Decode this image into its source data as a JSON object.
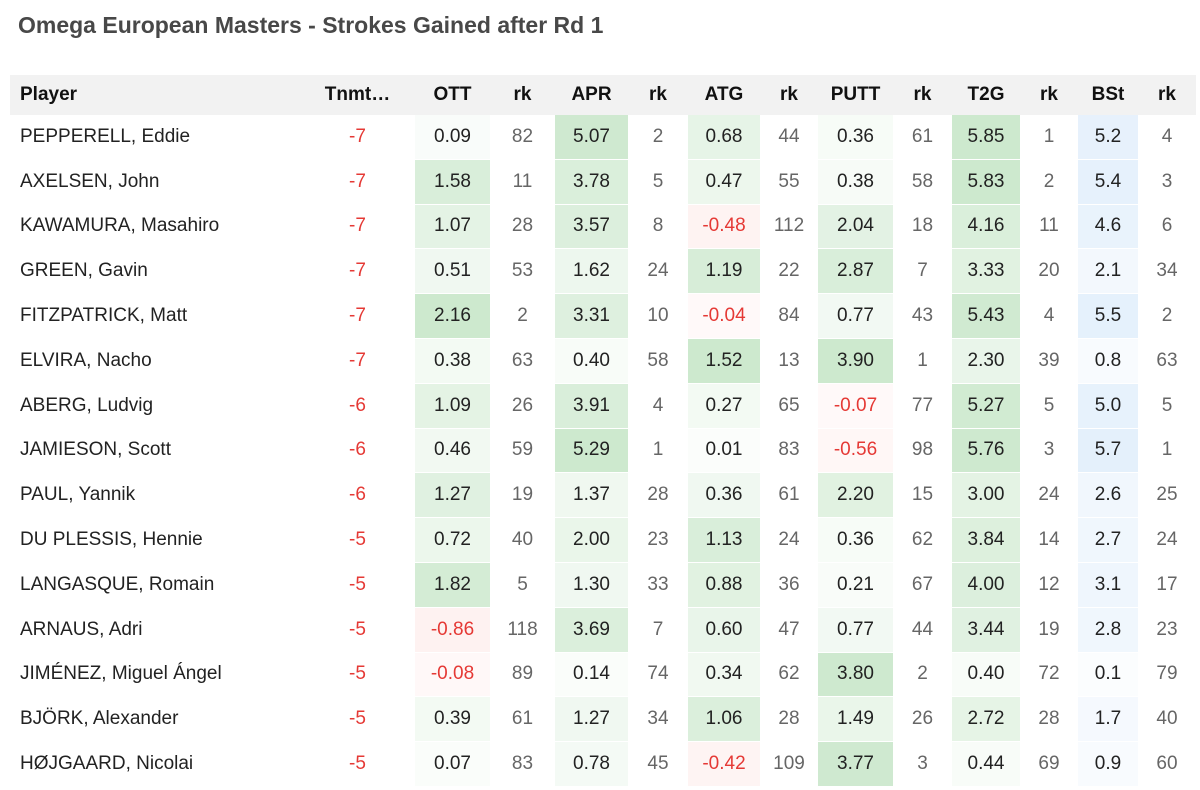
{
  "title": "Omega European Masters - Strokes Gained after Rd 1",
  "table": {
    "headers": [
      "Player",
      "Tnmt…",
      "OTT",
      "rk",
      "APR",
      "rk",
      "ATG",
      "rk",
      "PUTT",
      "rk",
      "T2G",
      "rk",
      "BSt",
      "rk"
    ],
    "rows": [
      [
        "PEPPERELL, Eddie",
        "-7",
        "0.09",
        "82",
        "5.07",
        "2",
        "0.68",
        "44",
        "0.36",
        "61",
        "5.85",
        "1",
        "5.2",
        "4"
      ],
      [
        "AXELSEN, John",
        "-7",
        "1.58",
        "11",
        "3.78",
        "5",
        "0.47",
        "55",
        "0.38",
        "58",
        "5.83",
        "2",
        "5.4",
        "3"
      ],
      [
        "KAWAMURA, Masahiro",
        "-7",
        "1.07",
        "28",
        "3.57",
        "8",
        "-0.48",
        "112",
        "2.04",
        "18",
        "4.16",
        "11",
        "4.6",
        "6"
      ],
      [
        "GREEN, Gavin",
        "-7",
        "0.51",
        "53",
        "1.62",
        "24",
        "1.19",
        "22",
        "2.87",
        "7",
        "3.33",
        "20",
        "2.1",
        "34"
      ],
      [
        "FITZPATRICK, Matt",
        "-7",
        "2.16",
        "2",
        "3.31",
        "10",
        "-0.04",
        "84",
        "0.77",
        "43",
        "5.43",
        "4",
        "5.5",
        "2"
      ],
      [
        "ELVIRA, Nacho",
        "-7",
        "0.38",
        "63",
        "0.40",
        "58",
        "1.52",
        "13",
        "3.90",
        "1",
        "2.30",
        "39",
        "0.8",
        "63"
      ],
      [
        "ABERG, Ludvig",
        "-6",
        "1.09",
        "26",
        "3.91",
        "4",
        "0.27",
        "65",
        "-0.07",
        "77",
        "5.27",
        "5",
        "5.0",
        "5"
      ],
      [
        "JAMIESON, Scott",
        "-6",
        "0.46",
        "59",
        "5.29",
        "1",
        "0.01",
        "83",
        "-0.56",
        "98",
        "5.76",
        "3",
        "5.7",
        "1"
      ],
      [
        "PAUL, Yannik",
        "-6",
        "1.27",
        "19",
        "1.37",
        "28",
        "0.36",
        "61",
        "2.20",
        "15",
        "3.00",
        "24",
        "2.6",
        "25"
      ],
      [
        "DU PLESSIS, Hennie",
        "-5",
        "0.72",
        "40",
        "2.00",
        "23",
        "1.13",
        "24",
        "0.36",
        "62",
        "3.84",
        "14",
        "2.7",
        "24"
      ],
      [
        "LANGASQUE, Romain",
        "-5",
        "1.82",
        "5",
        "1.30",
        "33",
        "0.88",
        "36",
        "0.21",
        "67",
        "4.00",
        "12",
        "3.1",
        "17"
      ],
      [
        "ARNAUS, Adri",
        "-5",
        "-0.86",
        "118",
        "3.69",
        "7",
        "0.60",
        "47",
        "0.77",
        "44",
        "3.44",
        "19",
        "2.8",
        "23"
      ],
      [
        "JIMÉNEZ, Miguel Ángel",
        "-5",
        "-0.08",
        "89",
        "0.14",
        "74",
        "0.34",
        "62",
        "3.80",
        "2",
        "0.40",
        "72",
        "0.1",
        "79"
      ],
      [
        "BJÖRK, Alexander",
        "-5",
        "0.39",
        "61",
        "1.27",
        "34",
        "1.06",
        "28",
        "1.49",
        "26",
        "2.72",
        "28",
        "1.7",
        "40"
      ],
      [
        "HØJGAARD, Nicolai",
        "-5",
        "0.07",
        "83",
        "0.78",
        "45",
        "-0.42",
        "109",
        "3.77",
        "3",
        "0.44",
        "69",
        "0.9",
        "60"
      ]
    ]
  }
}
